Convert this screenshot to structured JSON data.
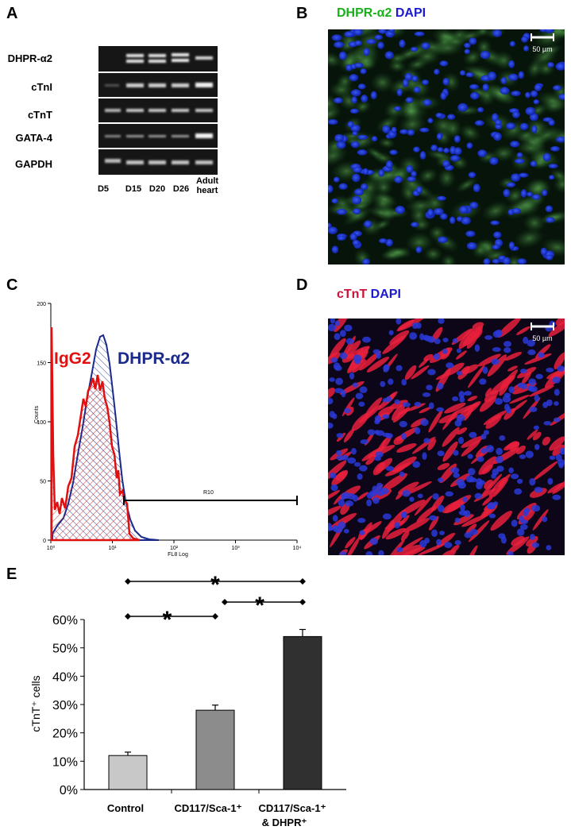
{
  "panelA": {
    "letter": "A",
    "rows": [
      "DHPR-α2",
      "cTnI",
      "cTnT",
      "GATA-4",
      "GAPDH"
    ],
    "lanes": [
      "D5",
      "D15",
      "D20",
      "D26",
      "Adult heart"
    ],
    "lane_last_line1": "Adult",
    "lane_last_line2": "heart"
  },
  "panelB": {
    "letter": "B",
    "title_marker": "DHPR-α2",
    "title_stain": "DAPI",
    "scale": "50 µm",
    "marker_color": "#1ab01a",
    "stain_color": "#1a1ad0"
  },
  "panelC": {
    "letter": "C",
    "label_control": "IgG2",
    "label_marker": "DHPR-α2",
    "ylabel": "Counts",
    "xlabel": "FL8 Log",
    "gate": "R10",
    "yticks": [
      "0",
      "50",
      "100",
      "150",
      "200"
    ],
    "xticks": [
      "10⁰",
      "10¹",
      "10²",
      "10³",
      "10⁴"
    ],
    "control_color": "#e01010",
    "marker_color": "#1a2a8a"
  },
  "panelD": {
    "letter": "D",
    "title_marker": "cTnT",
    "title_stain": "DAPI",
    "scale": "50 µm",
    "marker_color": "#d0103a",
    "stain_color": "#1a1ad0"
  },
  "panelE": {
    "letter": "E",
    "ylabel": "cTnT⁺ cells",
    "sig": "*",
    "cat3_line2": "& DHPR⁺"
  },
  "chart_data": {
    "type": "bar",
    "categories": [
      "Control",
      "CD117/Sca-1⁺",
      "CD117/Sca-1⁺ & DHPR⁺"
    ],
    "values": [
      12,
      28,
      54
    ],
    "errors": [
      1.2,
      1.8,
      2.5
    ],
    "ylim": [
      0,
      60
    ],
    "yticks": [
      "0%",
      "10%",
      "20%",
      "30%",
      "40%",
      "50%",
      "60%"
    ],
    "bar_colors": [
      "#c8c8c8",
      "#8c8c8c",
      "#303030"
    ],
    "ylabel": "cTnT⁺ cells",
    "significance": [
      [
        "Control",
        "CD117/Sca-1⁺"
      ],
      [
        "CD117/Sca-1⁺",
        "CD117/Sca-1⁺ & DHPR⁺"
      ],
      [
        "Control",
        "CD117/Sca-1⁺ & DHPR⁺"
      ]
    ]
  }
}
